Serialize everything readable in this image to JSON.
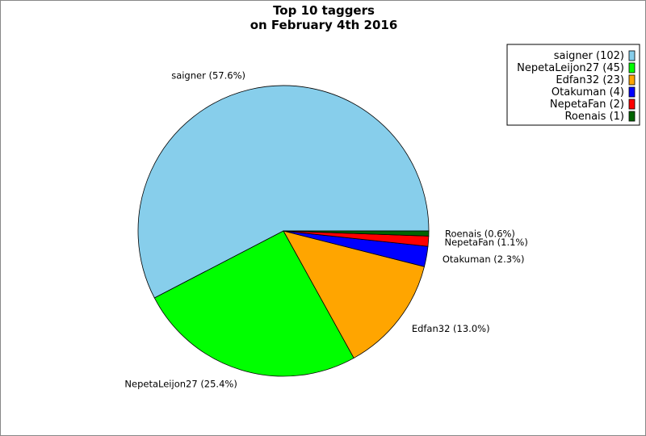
{
  "chart_data": {
    "type": "pie",
    "title": [
      "Top 10 taggers",
      "on February 4th 2016"
    ],
    "slices": [
      {
        "name": "saigner",
        "value": 102,
        "percent": 57.6,
        "color": "#87ceeb"
      },
      {
        "name": "NepetaLeijon27",
        "value": 45,
        "percent": 25.4,
        "color": "#00ff00"
      },
      {
        "name": "Edfan32",
        "value": 23,
        "percent": 13.0,
        "color": "#ffa500"
      },
      {
        "name": "Otakuman",
        "value": 4,
        "percent": 2.3,
        "color": "#0000ff"
      },
      {
        "name": "NepetaFan",
        "value": 2,
        "percent": 1.1,
        "color": "#ff0000"
      },
      {
        "name": "Roenais",
        "value": 1,
        "percent": 0.6,
        "color": "#006400"
      }
    ],
    "legend_position": "top-right",
    "start_angle": "3 o'clock, counterclockwise"
  }
}
